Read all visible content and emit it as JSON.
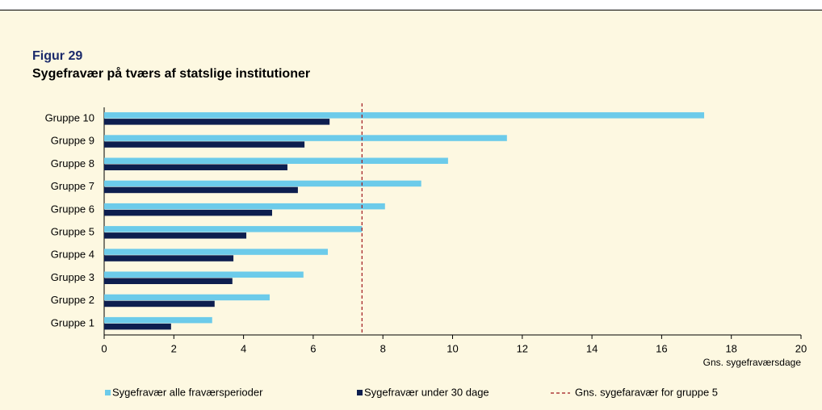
{
  "chart_data": {
    "type": "bar",
    "orientation": "horizontal",
    "figure_label": "Figur 29",
    "title": "Sygefravær på tværs af statslige institutioner",
    "xlabel": "Gns. sygefraværsdage",
    "categories": [
      "Gruppe 1",
      "Gruppe 2",
      "Gruppe 3",
      "Gruppe 4",
      "Gruppe 5",
      "Gruppe 6",
      "Gruppe 7",
      "Gruppe 8",
      "Gruppe 9",
      "Gruppe 10"
    ],
    "series": [
      {
        "name": "Sygefravær alle fraværsperioder",
        "color": "#6ccbea",
        "values": [
          3.1,
          4.75,
          5.72,
          6.42,
          7.4,
          8.06,
          9.1,
          9.87,
          11.56,
          17.22
        ]
      },
      {
        "name": "Sygefravær under 30 dage",
        "color": "#0d1e4f",
        "values": [
          1.92,
          3.17,
          3.68,
          3.71,
          4.08,
          4.82,
          5.56,
          5.26,
          5.75,
          6.47
        ]
      }
    ],
    "reference_line": {
      "name": "Gns. sygefaravær for gruppe 5",
      "value": 7.4,
      "color": "#a0151a"
    },
    "xlim": [
      0,
      20
    ],
    "xticks": [
      0,
      2,
      4,
      6,
      8,
      10,
      12,
      14,
      16,
      18,
      20
    ],
    "grid": false
  }
}
